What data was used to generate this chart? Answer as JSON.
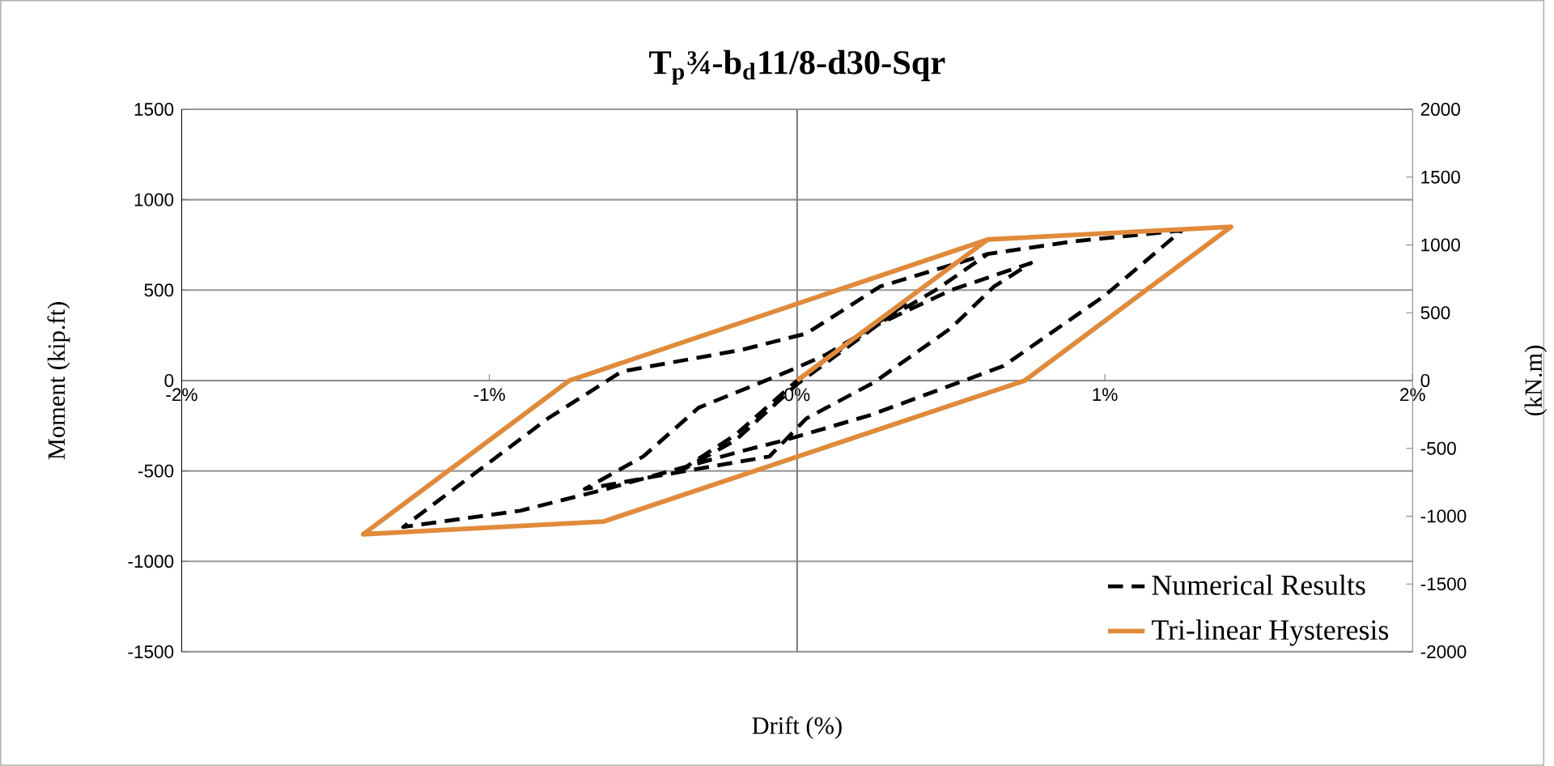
{
  "chart_data": {
    "type": "line",
    "title": "T$_{p}$¾-b$_{d}$11/8-d30-Sqr",
    "xlabel": "Drift (%)",
    "ylabel": "Moment (kip.ft)",
    "y2label": "(kN.m)",
    "xlim": [
      -2,
      2
    ],
    "xticks": [
      {
        "value": -2,
        "label": "-2%"
      },
      {
        "value": -1,
        "label": "-1%"
      },
      {
        "value": 0,
        "label": "0%"
      },
      {
        "value": 1,
        "label": "1%"
      },
      {
        "value": 2,
        "label": "2%"
      }
    ],
    "ylim": [
      -1500,
      1500
    ],
    "yticks": [
      -1500,
      -1000,
      -500,
      0,
      500,
      1000,
      1500
    ],
    "y2lim": [
      -2000,
      2000
    ],
    "y2ticks": [
      -2000,
      -1500,
      -1000,
      -500,
      0,
      500,
      1000,
      1500,
      2000
    ],
    "grid": "y",
    "legend": "bottom right",
    "marker": "none",
    "series": [
      {
        "name": "Numerical Results",
        "color": "#000000",
        "line_style": "dashed",
        "x": [
          0,
          0.2,
          0.35,
          0.2,
          0,
          -0.2,
          -0.4,
          -0.2,
          0,
          0.25,
          0.5,
          0.76,
          0.64,
          0.5,
          0.25,
          0.03,
          -0.09,
          -0.43,
          -0.69,
          -0.5,
          -0.32,
          -0.03,
          0.09,
          0.45,
          0.62,
          0.9,
          1.25,
          1.0,
          0.67,
          0.24,
          -0.04,
          -0.18,
          -0.62,
          -0.9,
          -1.28,
          -0.81,
          -0.57,
          -0.18,
          0.03,
          0.27,
          0.62
        ],
        "values": [
          0,
          250,
          420,
          230,
          -20,
          -330,
          -520,
          -300,
          0,
          300,
          500,
          650,
          520,
          290,
          -10,
          -210,
          -420,
          -520,
          -600,
          -420,
          -150,
          50,
          140,
          500,
          700,
          770,
          830,
          470,
          80,
          -190,
          -330,
          -390,
          -600,
          -720,
          -810,
          -210,
          50,
          170,
          260,
          520,
          700
        ]
      },
      {
        "name": "Tri-linear Hysteresis",
        "color": "#e08a3c",
        "line_style": "solid",
        "x": [
          0,
          0.62,
          1.41,
          0.74,
          -0.63,
          -1.41,
          -0.74,
          0.62
        ],
        "values": [
          0,
          780,
          850,
          0,
          -780,
          -850,
          0,
          780
        ]
      }
    ]
  }
}
